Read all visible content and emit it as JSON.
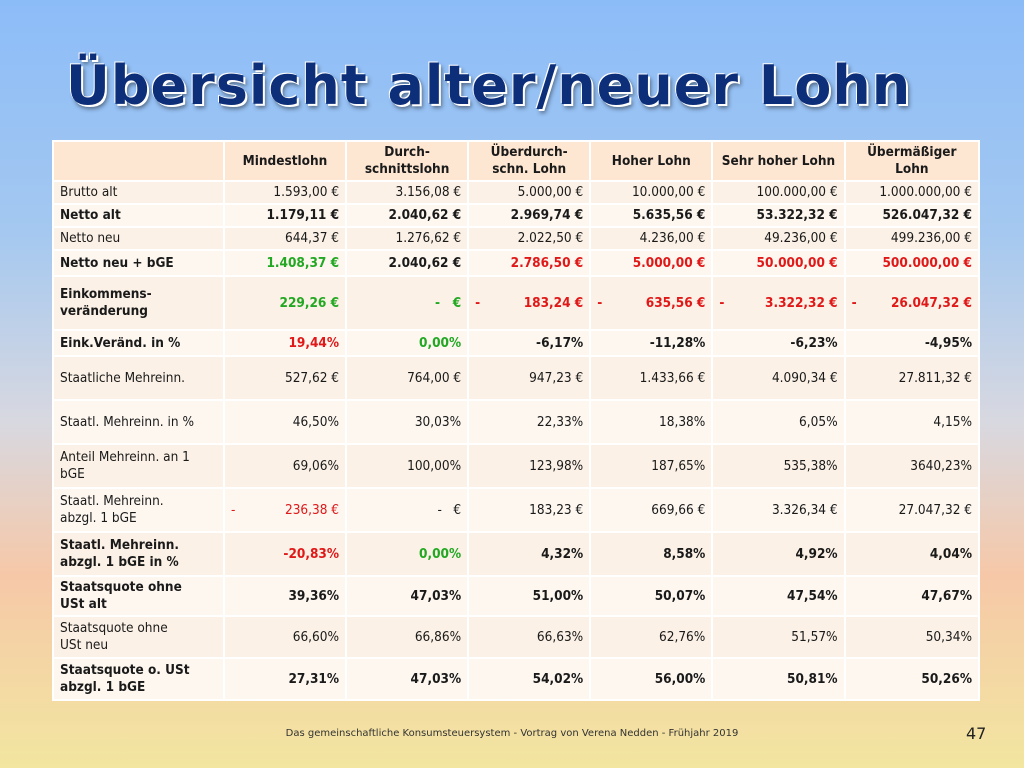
{
  "title": "Übersicht alter/neuer Lohn",
  "table": {
    "headers": [
      "Mindestlohn",
      "Durch-\nschnittslohn",
      "Überdurch-\nschn. Lohn",
      "Hoher Lohn",
      "Sehr hoher Lohn",
      "Übermäßiger\nLohn"
    ],
    "rows": [
      {
        "label": "Brutto alt",
        "bold": false,
        "values": [
          "1.593,00 €",
          "3.156,08 €",
          "5.000,00 €",
          "10.000,00 €",
          "100.000,00 €",
          "1.000.000,00 €"
        ],
        "colors": [
          "",
          "",
          "",
          "",
          "",
          ""
        ]
      },
      {
        "label": "Netto alt",
        "bold": true,
        "values": [
          "1.179,11 €",
          "2.040,62 €",
          "2.969,74 €",
          "5.635,56 €",
          "53.322,32 €",
          "526.047,32 €"
        ],
        "colors": [
          "",
          "",
          "",
          "",
          "",
          ""
        ]
      },
      {
        "label": "Netto neu",
        "bold": false,
        "values": [
          "644,37 €",
          "1.276,62 €",
          "2.022,50 €",
          "4.236,00 €",
          "49.236,00 €",
          "499.236,00 €"
        ],
        "colors": [
          "",
          "",
          "",
          "",
          "",
          ""
        ]
      },
      {
        "label": "Netto neu + bGE",
        "bold": true,
        "values": [
          "1.408,37 €",
          "2.040,62 €",
          "2.786,50 €",
          "5.000,00 €",
          "50.000,00 €",
          "500.000,00 €"
        ],
        "colors": [
          "green",
          "",
          "red",
          "red",
          "red",
          "red"
        ]
      },
      {
        "label": "Einkommens-\nveränderung",
        "bold": true,
        "values": [
          "229,26 €",
          "-   €",
          "183,24 €",
          "635,56 €",
          "3.322,32 €",
          "26.047,32 €"
        ],
        "prefix": [
          "",
          "",
          "-",
          "-",
          "-",
          "-"
        ],
        "colors": [
          "green",
          "green",
          "red",
          "red",
          "red",
          "red"
        ]
      },
      {
        "label": "Eink.Veränd. in %",
        "bold": true,
        "values": [
          "19,44%",
          "0,00%",
          "-6,17%",
          "-11,28%",
          "-6,23%",
          "-4,95%"
        ],
        "colors": [
          "red",
          "green",
          "",
          "",
          "",
          ""
        ]
      },
      {
        "label": "Staatliche  Mehreinn.",
        "bold": false,
        "values": [
          "527,62 €",
          "764,00 €",
          "947,23 €",
          "1.433,66 €",
          "4.090,34 €",
          "27.811,32 €"
        ],
        "colors": [
          "",
          "",
          "",
          "",
          "",
          ""
        ]
      },
      {
        "label": "Staatl. Mehreinn. in %",
        "bold": false,
        "values": [
          "46,50%",
          "30,03%",
          "22,33%",
          "18,38%",
          "6,05%",
          "4,15%"
        ],
        "colors": [
          "",
          "",
          "",
          "",
          "",
          ""
        ]
      },
      {
        "label": "Anteil Mehreinn. an 1\nbGE",
        "bold": false,
        "values": [
          "69,06%",
          "100,00%",
          "123,98%",
          "187,65%",
          "535,38%",
          "3640,23%"
        ],
        "colors": [
          "",
          "",
          "",
          "",
          "",
          ""
        ]
      },
      {
        "label": "Staatl. Mehreinn.\nabzgl. 1 bGE",
        "bold": false,
        "values": [
          "236,38 €",
          "-   €",
          "183,23 €",
          "669,66 €",
          "3.326,34 €",
          "27.047,32 €"
        ],
        "prefix": [
          "-",
          "",
          "",
          "",
          "",
          ""
        ],
        "colors": [
          "red",
          "",
          "",
          "",
          "",
          ""
        ]
      },
      {
        "label": "Staatl. Mehreinn.\nabzgl. 1 bGE in %",
        "bold": true,
        "values": [
          "-20,83%",
          "0,00%",
          "4,32%",
          "8,58%",
          "4,92%",
          "4,04%"
        ],
        "colors": [
          "red",
          "green",
          "",
          "",
          "",
          ""
        ]
      },
      {
        "label": "Staatsquote ohne\nUSt alt",
        "bold": true,
        "values": [
          "39,36%",
          "47,03%",
          "51,00%",
          "50,07%",
          "47,54%",
          "47,67%"
        ],
        "colors": [
          "",
          "",
          "",
          "",
          "",
          ""
        ]
      },
      {
        "label": "Staatsquote ohne\nUSt neu",
        "bold": false,
        "values": [
          "66,60%",
          "66,86%",
          "66,63%",
          "62,76%",
          "51,57%",
          "50,34%"
        ],
        "colors": [
          "",
          "",
          "",
          "",
          "",
          ""
        ]
      },
      {
        "label": "Staatsquote o. USt\nabzgl. 1 bGE",
        "bold": true,
        "values": [
          "27,31%",
          "47,03%",
          "54,02%",
          "56,00%",
          "50,81%",
          "50,26%"
        ],
        "colors": [
          "",
          "",
          "",
          "",
          "",
          ""
        ]
      }
    ]
  },
  "footer": "Das gemeinschaftliche Konsumsteuersystem - Vortrag von Verena Nedden  -  Frühjahr 2019",
  "page_number": "47"
}
